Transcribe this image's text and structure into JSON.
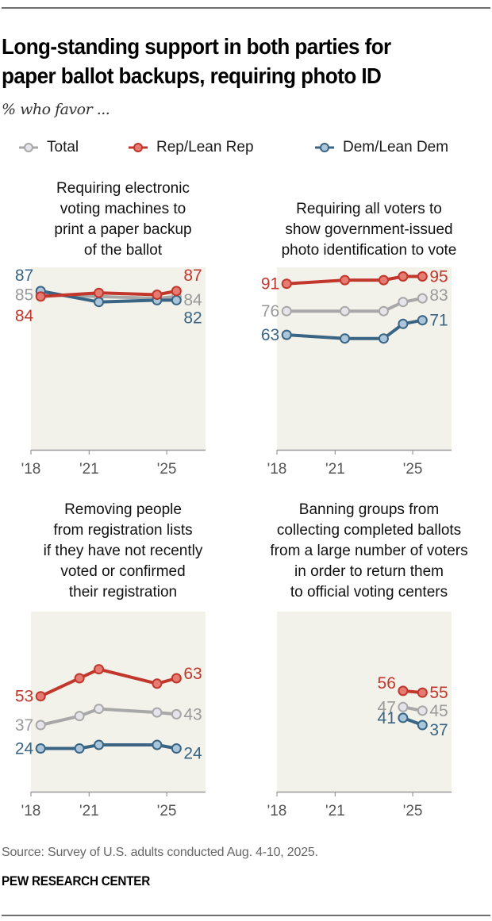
{
  "header": {
    "title_line1": "Long-standing support in both parties for",
    "title_line2": "paper ballot backups, requiring photo ID",
    "subtitle": "% who favor ..."
  },
  "legend": [
    {
      "label": "Total",
      "key": "total"
    },
    {
      "label": "Rep/Lean Rep",
      "key": "rep"
    },
    {
      "label": "Dem/Lean Dem",
      "key": "dem"
    }
  ],
  "colors": {
    "total_line": "#a8a8a8",
    "total_fill": "#e4e4ea",
    "total_label": "#9a9a9a",
    "rep_line": "#c2372b",
    "rep_fill": "#e57b73",
    "rep_label": "#c2372b",
    "dem_line": "#3a6484",
    "dem_fill": "#a9c6da",
    "dem_label": "#3a6484",
    "plot_bg": "#f2f1ea",
    "axis": "#9a9a9a",
    "tick_label": "#555555"
  },
  "panels": [
    {
      "title_lines": [
        "Requiring electronic",
        "voting machines to",
        "print a paper backup",
        "of the ballot"
      ]
    },
    {
      "title_lines": [
        "Requiring all voters to",
        "show government-issued",
        "photo identification to vote"
      ]
    },
    {
      "title_lines": [
        "Removing people",
        "from registration lists",
        "if they have not recently",
        "voted or confirmed",
        "their registration"
      ]
    },
    {
      "title_lines": [
        "Banning groups from",
        "collecting completed ballots",
        "from a large number of voters",
        "in order to return them",
        "to official voting centers"
      ]
    }
  ],
  "chart_data": [
    {
      "type": "line",
      "title": "Requiring electronic voting machines to print a paper backup of the ballot",
      "x_ticks": [
        "'18",
        "'21",
        "'25"
      ],
      "x_tick_values": [
        2018,
        2021,
        2025
      ],
      "xlim": [
        2018,
        2027
      ],
      "ylim": [
        0,
        100
      ],
      "x": [
        2018.5,
        2021.5,
        2024.5,
        2025.5
      ],
      "series": [
        {
          "name": "Total",
          "key": "total",
          "values": [
            85,
            84,
            83,
            84
          ]
        },
        {
          "name": "Rep/Lean Rep",
          "key": "rep",
          "values": [
            84,
            86,
            85,
            87
          ]
        },
        {
          "name": "Dem/Lean Dem",
          "key": "dem",
          "values": [
            87,
            81,
            82,
            82
          ]
        }
      ],
      "labels": {
        "start": {
          "total": "85",
          "rep": "84",
          "dem": "87"
        },
        "end": {
          "total": "84",
          "rep": "87",
          "dem": "82"
        }
      }
    },
    {
      "type": "line",
      "title": "Requiring all voters to show government-issued photo identification to vote",
      "x_ticks": [
        "'18",
        "'21",
        "'25"
      ],
      "x_tick_values": [
        2018,
        2021,
        2025
      ],
      "xlim": [
        2018,
        2027
      ],
      "ylim": [
        0,
        100
      ],
      "x": [
        2018.5,
        2021.5,
        2023.5,
        2024.5,
        2025.5
      ],
      "series": [
        {
          "name": "Total",
          "key": "total",
          "values": [
            76,
            76,
            76,
            81,
            83
          ]
        },
        {
          "name": "Rep/Lean Rep",
          "key": "rep",
          "values": [
            91,
            93,
            93,
            95,
            95
          ]
        },
        {
          "name": "Dem/Lean Dem",
          "key": "dem",
          "values": [
            63,
            61,
            61,
            69,
            71
          ]
        }
      ],
      "labels": {
        "start": {
          "total": "76",
          "rep": "91",
          "dem": "63"
        },
        "end": {
          "total": "83",
          "rep": "95",
          "dem": "71"
        }
      }
    },
    {
      "type": "line",
      "title": "Removing people from registration lists if they have not recently voted or confirmed their registration",
      "x_ticks": [
        "'18",
        "'21",
        "'25"
      ],
      "x_tick_values": [
        2018,
        2021,
        2025
      ],
      "xlim": [
        2018,
        2027
      ],
      "ylim": [
        0,
        100
      ],
      "x": [
        2018.5,
        2020.5,
        2021.5,
        2024.5,
        2025.5
      ],
      "series": [
        {
          "name": "Total",
          "key": "total",
          "values": [
            37,
            42,
            46,
            44,
            43
          ]
        },
        {
          "name": "Rep/Lean Rep",
          "key": "rep",
          "values": [
            53,
            63,
            68,
            60,
            63
          ]
        },
        {
          "name": "Dem/Lean Dem",
          "key": "dem",
          "values": [
            24,
            24,
            26,
            26,
            24
          ]
        }
      ],
      "labels": {
        "start": {
          "total": "37",
          "rep": "53",
          "dem": "24"
        },
        "end": {
          "total": "43",
          "rep": "63",
          "dem": "24"
        }
      }
    },
    {
      "type": "line",
      "title": "Banning groups from collecting completed ballots from a large number of voters in order to return them to official voting centers",
      "x_ticks": [
        "'18",
        "'21",
        "'25"
      ],
      "x_tick_values": [
        2018,
        2021,
        2025
      ],
      "xlim": [
        2018,
        2027
      ],
      "ylim": [
        0,
        100
      ],
      "x": [
        2024.5,
        2025.5
      ],
      "series": [
        {
          "name": "Total",
          "key": "total",
          "values": [
            47,
            45
          ]
        },
        {
          "name": "Rep/Lean Rep",
          "key": "rep",
          "values": [
            56,
            55
          ]
        },
        {
          "name": "Dem/Lean Dem",
          "key": "dem",
          "values": [
            41,
            37
          ]
        }
      ],
      "labels": {
        "start": {
          "total": "47",
          "rep": "56",
          "dem": "41"
        },
        "end": {
          "total": "45",
          "rep": "55",
          "dem": "37"
        }
      }
    }
  ],
  "footer": {
    "source": "Source: Survey of U.S. adults conducted Aug. 4-10, 2025.",
    "brand": "PEW RESEARCH CENTER"
  }
}
